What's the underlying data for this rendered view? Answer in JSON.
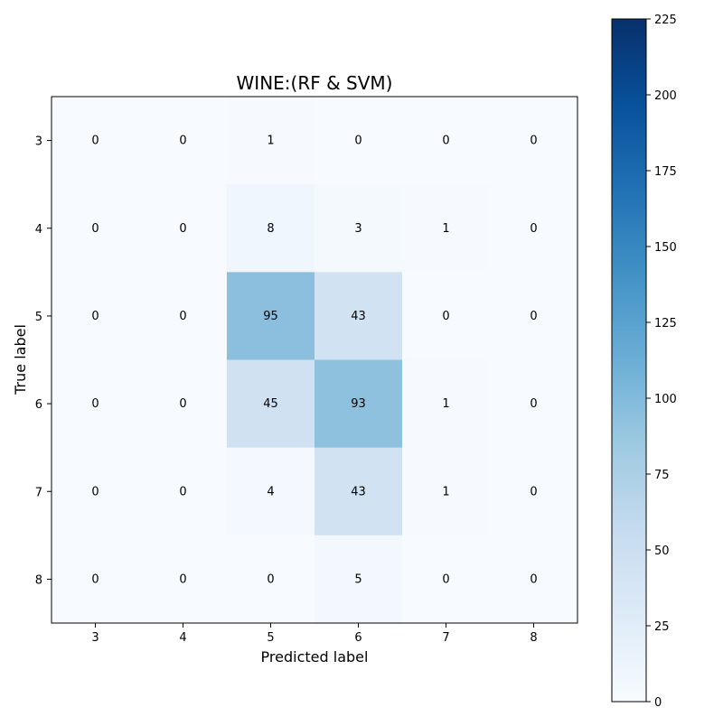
{
  "chart_data": {
    "type": "heatmap",
    "title": "WINE:(RF & SVM)",
    "xlabel": "Predicted label",
    "ylabel": "True label",
    "x_categories": [
      "3",
      "4",
      "5",
      "6",
      "7",
      "8"
    ],
    "y_categories": [
      "3",
      "4",
      "5",
      "6",
      "7",
      "8"
    ],
    "matrix": [
      [
        0,
        0,
        1,
        0,
        0,
        0
      ],
      [
        0,
        0,
        8,
        3,
        1,
        0
      ],
      [
        0,
        0,
        95,
        43,
        0,
        0
      ],
      [
        0,
        0,
        45,
        93,
        1,
        0
      ],
      [
        0,
        0,
        4,
        43,
        1,
        0
      ],
      [
        0,
        0,
        0,
        5,
        0,
        0
      ]
    ],
    "colormap": "Blues",
    "colorbar": {
      "min": 0,
      "max": 225,
      "ticks": [
        0,
        25,
        50,
        75,
        100,
        125,
        150,
        175,
        200,
        225
      ]
    }
  }
}
